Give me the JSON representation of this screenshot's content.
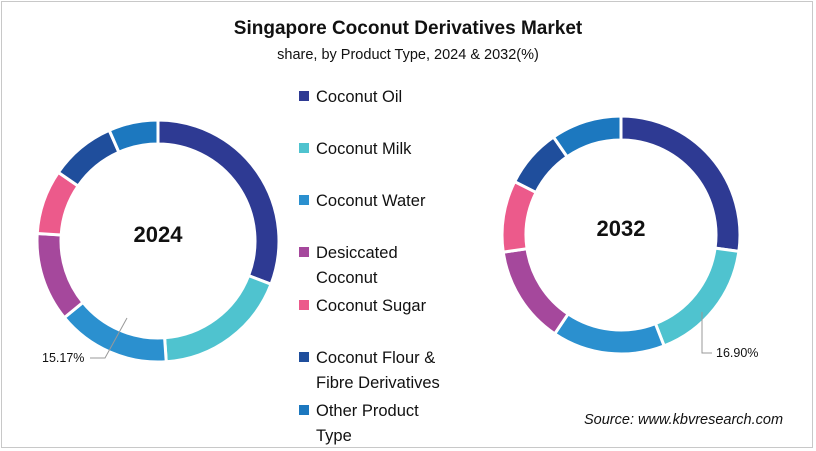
{
  "chart_data": [
    {
      "type": "pie",
      "subtype": "donut",
      "title": "Singapore Coconut Derivatives Market",
      "subtitle": "share, by Product Type, 2024 & 2032(%)",
      "center_label": "2024",
      "categories": [
        "Coconut Oil",
        "Coconut Milk",
        "Coconut Water",
        "Desiccated Coconut",
        "Coconut Sugar",
        "Coconut Flour & Fibre Derivatives",
        "Other Product Type"
      ],
      "values": [
        30.8,
        18.1,
        15.17,
        11.9,
        8.6,
        8.8,
        6.6
      ],
      "annotations": [
        {
          "category": "Coconut Water",
          "label": "15.17%"
        }
      ]
    },
    {
      "type": "pie",
      "subtype": "donut",
      "title": "Singapore Coconut Derivatives Market",
      "subtitle": "share, by Product Type, 2024 & 2032(%)",
      "center_label": "2032",
      "categories": [
        "Coconut Oil",
        "Coconut Milk",
        "Coconut Water",
        "Desiccated Coconut",
        "Coconut Sugar",
        "Coconut Flour & Fibre Derivatives",
        "Other Product Type"
      ],
      "values": [
        27.2,
        16.9,
        15.3,
        13.3,
        9.7,
        8.0,
        9.6
      ],
      "annotations": [
        {
          "category": "Coconut Milk",
          "label": "16.90%"
        }
      ]
    }
  ],
  "header": {
    "title": "Singapore Coconut Derivatives Market",
    "subtitle": "share, by Product Type, 2024 & 2032(%)"
  },
  "legend": {
    "items": [
      {
        "label": "Coconut Oil",
        "color": "#2e3a93"
      },
      {
        "label": "Coconut Milk",
        "color": "#4fc3cf"
      },
      {
        "label": "Coconut Water",
        "color": "#2b90cf"
      },
      {
        "label": "Desiccated Coconut",
        "color": "#a5489c"
      },
      {
        "label": "Coconut Sugar",
        "color": "#ec5a8b"
      },
      {
        "label": "Coconut Flour & Fibre Derivatives",
        "color": "#1f4e9c"
      },
      {
        "label": "Other Product Type",
        "color": "#1c78bf"
      }
    ]
  },
  "donut_2024": {
    "year": "2024",
    "annotation": "15.17%"
  },
  "donut_2032": {
    "year": "2032",
    "annotation": "16.90%"
  },
  "footer": {
    "source": "Source: www.kbvresearch.com"
  }
}
